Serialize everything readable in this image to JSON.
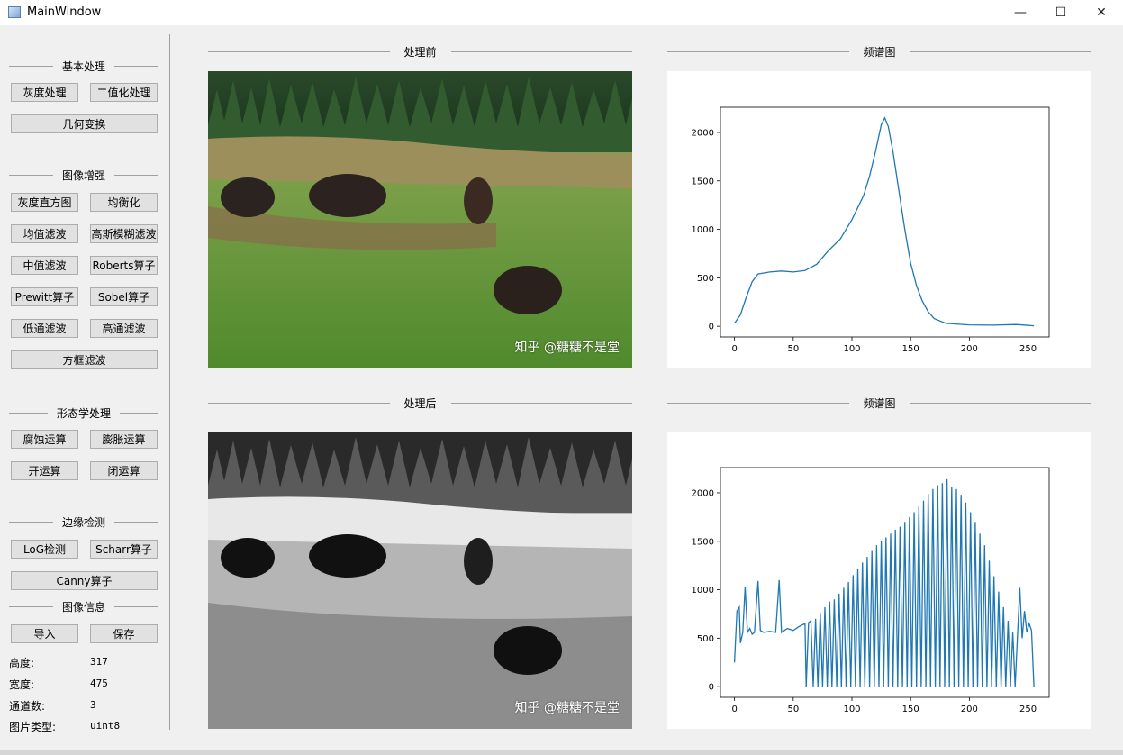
{
  "window": {
    "title": "MainWindow",
    "min_glyph": "—",
    "max_glyph": "☐",
    "close_glyph": "✕"
  },
  "sidebar": {
    "basic": {
      "title": "基本处理",
      "gray": "灰度处理",
      "binary": "二值化处理",
      "geometry": "几何变换"
    },
    "enhance": {
      "title": "图像增强",
      "hist": "灰度直方图",
      "equalize": "均衡化",
      "mean": "均值滤波",
      "gauss": "高斯模糊滤波",
      "median": "中值滤波",
      "roberts": "Roberts算子",
      "prewitt": "Prewitt算子",
      "sobel": "Sobel算子",
      "lowpass": "低通滤波",
      "highpass": "高通滤波",
      "box": "方框滤波"
    },
    "morph": {
      "title": "形态学处理",
      "erode": "腐蚀运算",
      "dilate": "膨胀运算",
      "open": "开运算",
      "close": "闭运算"
    },
    "edge": {
      "title": "边缘检测",
      "log": "LoG检测",
      "scharr": "Scharr算子",
      "canny": "Canny算子"
    },
    "info": {
      "title": "图像信息",
      "import": "导入",
      "save": "保存",
      "height_label": "高度:",
      "height_value": "317",
      "width_label": "宽度:",
      "width_value": "475",
      "channels_label": "通道数:",
      "channels_value": "3",
      "type_label": "图片类型:",
      "type_value": "uint8"
    }
  },
  "main": {
    "before_title": "处理前",
    "after_title": "处理后",
    "spectrum_title_top": "频谱图",
    "spectrum_title_bottom": "频谱图",
    "watermark_top": "知乎 @糖糖不是堂",
    "watermark_bottom": "知乎 @糖糖不是堂"
  },
  "colors": {
    "line": "#1f77b4",
    "grass": "#5b8a34",
    "forest": "#1f3d1f"
  },
  "chart_data": [
    {
      "type": "line",
      "title": "",
      "xlabel": "",
      "ylabel": "",
      "xlim": [
        -12,
        268
      ],
      "ylim": [
        -110,
        2260
      ],
      "xticks": [
        0,
        50,
        100,
        150,
        200,
        250
      ],
      "yticks": [
        0,
        500,
        1000,
        1500,
        2000
      ],
      "grid": false,
      "series": [
        {
          "points": [
            [
              0,
              30
            ],
            [
              5,
              120
            ],
            [
              10,
              300
            ],
            [
              15,
              460
            ],
            [
              20,
              540
            ],
            [
              30,
              560
            ],
            [
              40,
              570
            ],
            [
              50,
              560
            ],
            [
              60,
              575
            ],
            [
              70,
              640
            ],
            [
              80,
              780
            ],
            [
              90,
              900
            ],
            [
              100,
              1100
            ],
            [
              110,
              1350
            ],
            [
              115,
              1550
            ],
            [
              120,
              1800
            ],
            [
              125,
              2080
            ],
            [
              128,
              2150
            ],
            [
              131,
              2060
            ],
            [
              135,
              1800
            ],
            [
              140,
              1400
            ],
            [
              145,
              1000
            ],
            [
              150,
              650
            ],
            [
              155,
              420
            ],
            [
              160,
              260
            ],
            [
              165,
              150
            ],
            [
              170,
              80
            ],
            [
              180,
              30
            ],
            [
              200,
              15
            ],
            [
              220,
              12
            ],
            [
              240,
              18
            ],
            [
              255,
              5
            ]
          ]
        }
      ]
    },
    {
      "type": "line",
      "title": "",
      "xlabel": "",
      "ylabel": "",
      "xlim": [
        -12,
        268
      ],
      "ylim": [
        -110,
        2260
      ],
      "xticks": [
        0,
        50,
        100,
        150,
        200,
        250
      ],
      "yticks": [
        0,
        500,
        1000,
        1500,
        2000
      ],
      "grid": false,
      "series": [
        {
          "points": [
            [
              0,
              250
            ],
            [
              2,
              780
            ],
            [
              4,
              820
            ],
            [
              5,
              450
            ],
            [
              7,
              560
            ],
            [
              9,
              1030
            ],
            [
              11,
              560
            ],
            [
              13,
              600
            ],
            [
              15,
              540
            ],
            [
              17,
              560
            ],
            [
              20,
              1090
            ],
            [
              22,
              580
            ],
            [
              25,
              560
            ],
            [
              30,
              570
            ],
            [
              35,
              560
            ],
            [
              38,
              1100
            ],
            [
              40,
              560
            ],
            [
              45,
              600
            ],
            [
              50,
              580
            ],
            [
              55,
              620
            ],
            [
              60,
              650
            ],
            [
              61,
              0
            ],
            [
              63,
              660
            ],
            [
              65,
              680
            ],
            [
              67,
              0
            ],
            [
              69,
              700
            ],
            [
              71,
              0
            ],
            [
              73,
              760
            ],
            [
              75,
              0
            ],
            [
              77,
              820
            ],
            [
              79,
              0
            ],
            [
              81,
              880
            ],
            [
              83,
              0
            ],
            [
              85,
              900
            ],
            [
              87,
              0
            ],
            [
              89,
              960
            ],
            [
              91,
              0
            ],
            [
              93,
              1020
            ],
            [
              95,
              0
            ],
            [
              97,
              1080
            ],
            [
              99,
              0
            ],
            [
              101,
              1150
            ],
            [
              103,
              0
            ],
            [
              105,
              1220
            ],
            [
              107,
              0
            ],
            [
              109,
              1280
            ],
            [
              111,
              0
            ],
            [
              113,
              1340
            ],
            [
              115,
              0
            ],
            [
              117,
              1400
            ],
            [
              119,
              0
            ],
            [
              121,
              1460
            ],
            [
              123,
              0
            ],
            [
              125,
              1500
            ],
            [
              127,
              0
            ],
            [
              129,
              1540
            ],
            [
              131,
              0
            ],
            [
              133,
              1580
            ],
            [
              135,
              0
            ],
            [
              137,
              1620
            ],
            [
              139,
              0
            ],
            [
              141,
              1650
            ],
            [
              143,
              0
            ],
            [
              145,
              1700
            ],
            [
              147,
              0
            ],
            [
              149,
              1750
            ],
            [
              151,
              0
            ],
            [
              153,
              1800
            ],
            [
              155,
              0
            ],
            [
              157,
              1860
            ],
            [
              159,
              0
            ],
            [
              161,
              1920
            ],
            [
              163,
              0
            ],
            [
              165,
              1990
            ],
            [
              167,
              0
            ],
            [
              169,
              2040
            ],
            [
              171,
              0
            ],
            [
              173,
              2080
            ],
            [
              175,
              0
            ],
            [
              177,
              2100
            ],
            [
              179,
              0
            ],
            [
              181,
              2140
            ],
            [
              183,
              0
            ],
            [
              185,
              2060
            ],
            [
              187,
              0
            ],
            [
              189,
              2040
            ],
            [
              191,
              0
            ],
            [
              193,
              1980
            ],
            [
              195,
              0
            ],
            [
              197,
              1900
            ],
            [
              199,
              0
            ],
            [
              201,
              1800
            ],
            [
              203,
              0
            ],
            [
              205,
              1700
            ],
            [
              207,
              0
            ],
            [
              209,
              1580
            ],
            [
              211,
              0
            ],
            [
              213,
              1460
            ],
            [
              215,
              0
            ],
            [
              217,
              1300
            ],
            [
              219,
              0
            ],
            [
              221,
              1140
            ],
            [
              223,
              0
            ],
            [
              225,
              980
            ],
            [
              227,
              0
            ],
            [
              229,
              820
            ],
            [
              231,
              0
            ],
            [
              233,
              680
            ],
            [
              235,
              0
            ],
            [
              237,
              560
            ],
            [
              239,
              0
            ],
            [
              241,
              520
            ],
            [
              243,
              1020
            ],
            [
              245,
              500
            ],
            [
              247,
              780
            ],
            [
              249,
              560
            ],
            [
              251,
              650
            ],
            [
              253,
              580
            ],
            [
              255,
              0
            ]
          ]
        }
      ]
    }
  ]
}
